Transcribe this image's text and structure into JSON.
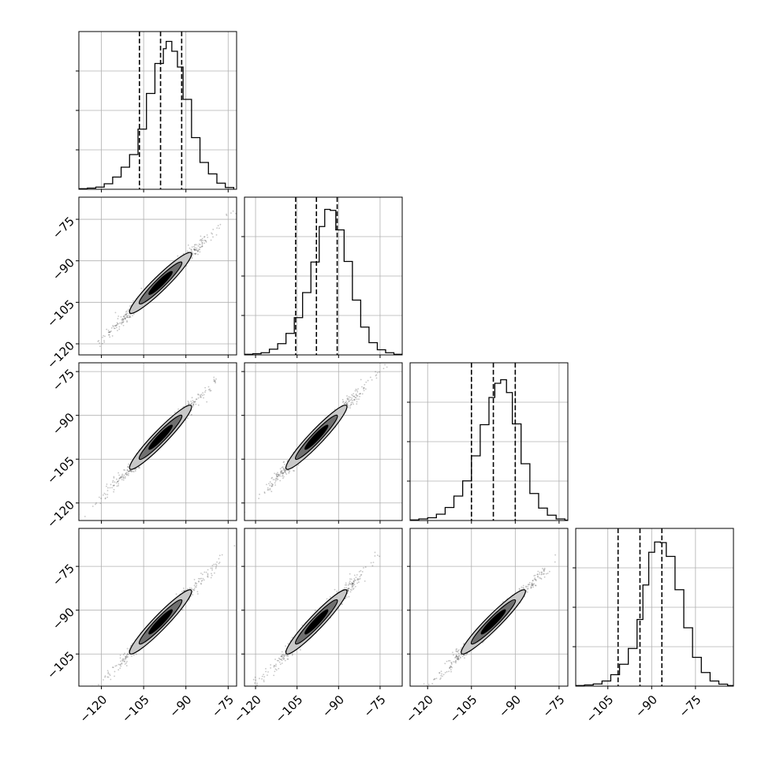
{
  "chart_data": {
    "type": "corner",
    "n_params": 4,
    "grid": true,
    "colors": {
      "line": "#000000",
      "grid": "#b0b0b0",
      "scatter": "#1a1a1a",
      "contour_inner": "#000000",
      "contour_mid": "#707070",
      "contour_outer": "#c8c8c8"
    },
    "params": [
      {
        "xlim": [
          -128,
          -72
        ],
        "ticks": [
          -120,
          -105,
          -90,
          -75
        ],
        "tick_labels": [
          "−120",
          "−105",
          "−90",
          "−75"
        ]
      },
      {
        "xlim": [
          -124,
          -67
        ],
        "ticks": [
          -120,
          -105,
          -90,
          -75
        ],
        "tick_labels": [
          "−120",
          "−105",
          "−90",
          "−75"
        ]
      },
      {
        "xlim": [
          -126,
          -72
        ],
        "ticks": [
          -120,
          -105,
          -90,
          -75
        ],
        "tick_labels": [
          "−120",
          "−105",
          "−90",
          "−75"
        ]
      },
      {
        "xlim": [
          -116,
          -62
        ],
        "ticks": [
          -105,
          -90,
          -75
        ],
        "tick_labels": [
          "−105",
          "−90",
          "−75"
        ]
      }
    ],
    "diagonal": [
      {
        "bin_edges": [
          -128,
          -125,
          -122,
          -119,
          -116,
          -113,
          -110,
          -107,
          -104,
          -101,
          -98,
          -97,
          -95,
          -93,
          -91,
          -88,
          -85,
          -82,
          -79,
          -76,
          -73
        ],
        "counts": [
          0.3,
          0.6,
          1.1,
          2.8,
          6.2,
          11.2,
          17.6,
          30.5,
          48.6,
          63.8,
          71.3,
          75,
          70,
          62,
          45.6,
          26.2,
          13.6,
          7.8,
          3.1,
          0.9
        ],
        "ylim": [
          0,
          80
        ],
        "quantiles": [
          -106.5,
          -99,
          -91.5
        ]
      },
      {
        "bin_edges": [
          -124,
          -121,
          -118,
          -115,
          -112,
          -109,
          -106,
          -103,
          -100,
          -97,
          -95,
          -93,
          -91,
          -88,
          -85,
          -82,
          -79,
          -76,
          -73,
          -70,
          -67
        ],
        "counts": [
          0.3,
          0.6,
          1.1,
          2.9,
          5.7,
          10.9,
          18.9,
          31.6,
          47.1,
          65.1,
          73.8,
          73.3,
          63.4,
          47.4,
          27.8,
          14.1,
          6.2,
          2.6,
          1.1,
          0.3
        ],
        "ylim": [
          0,
          80
        ],
        "quantiles": [
          -105.5,
          -98,
          -90.5
        ]
      },
      {
        "bin_edges": [
          -126,
          -123,
          -120,
          -117,
          -114,
          -111,
          -108,
          -105,
          -102,
          -99,
          -97,
          -95,
          -93,
          -91,
          -88,
          -85,
          -82,
          -79,
          -76,
          -73,
          -72
        ],
        "counts": [
          0.3,
          0.8,
          1.4,
          3.2,
          6.6,
          12.4,
          20.1,
          32.8,
          48.6,
          62.4,
          69.6,
          71.4,
          64.9,
          49,
          28.8,
          13.7,
          6.3,
          2.7,
          0.8,
          0.2
        ],
        "ylim": [
          0,
          80
        ],
        "quantiles": [
          -105,
          -97.5,
          -90
        ]
      },
      {
        "bin_edges": [
          -116,
          -113,
          -110,
          -107,
          -104,
          -101,
          -98,
          -95,
          -93,
          -91,
          -89,
          -87,
          -85,
          -82,
          -79,
          -76,
          -73,
          -70,
          -67,
          -64,
          -62
        ],
        "counts": [
          0.3,
          0.6,
          1.1,
          2.6,
          5.8,
          11.1,
          19.1,
          33.8,
          51.3,
          67.9,
          73.1,
          72.8,
          65.8,
          48.9,
          29.6,
          14.6,
          6.9,
          2.6,
          1,
          0.3
        ],
        "ylim": [
          0,
          80
        ],
        "quantiles": [
          -101.5,
          -94,
          -86.5
        ]
      }
    ]
  }
}
